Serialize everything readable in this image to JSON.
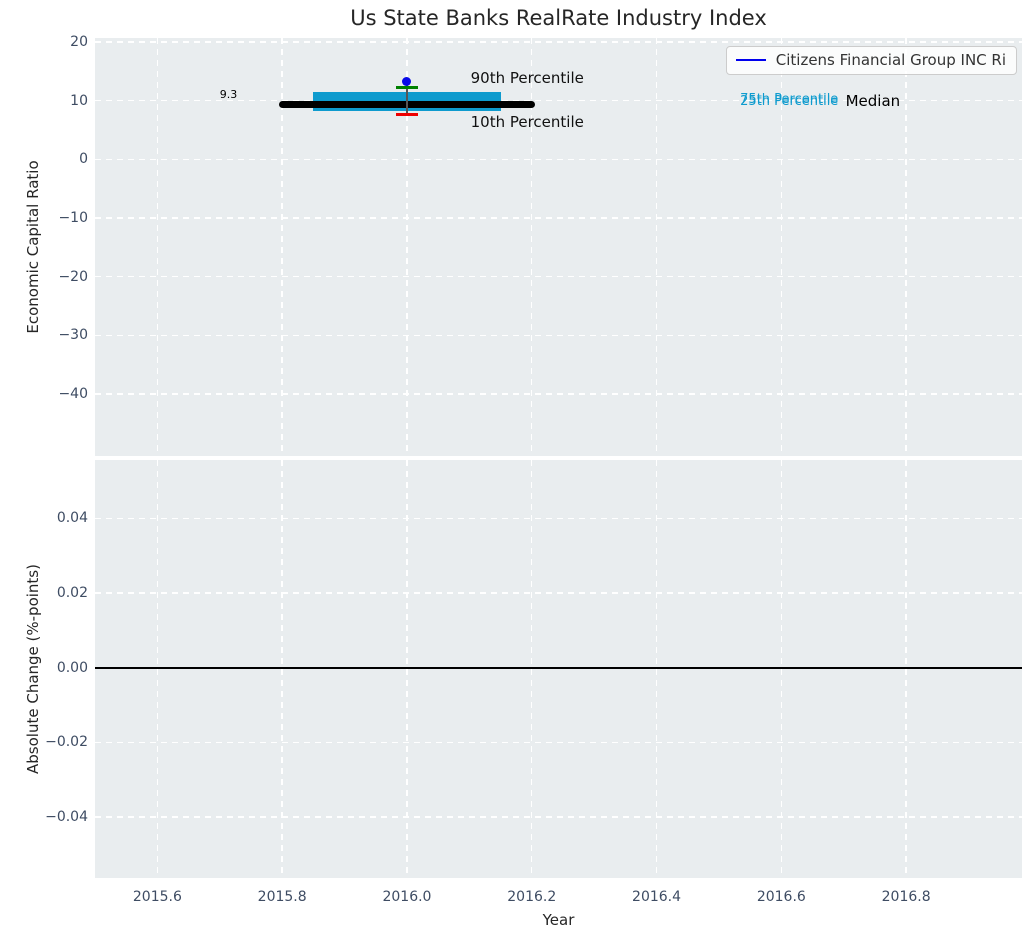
{
  "chart_data": {
    "type": "errorbar",
    "title": "Us State Banks RealRate Industry Index",
    "xlabel": "Year",
    "x_ticks": [
      2015.6,
      2015.8,
      2016.0,
      2016.2,
      2016.4,
      2016.6,
      2016.8
    ],
    "x_tick_labels": [
      "2015.6",
      "2015.8",
      "2016.0",
      "2016.2",
      "2016.4",
      "2016.6",
      "2016.8"
    ],
    "xlim": [
      2015.5,
      2016.9857
    ],
    "grid": true,
    "background_color": "#e9edef",
    "legend": {
      "position": "upper right",
      "entries": [
        {
          "label": "Citizens Financial Group INC Ri",
          "color": "#0000ee"
        }
      ]
    },
    "panels": [
      {
        "ylabel": "Economic Capital Ratio",
        "y_ticks": [
          20,
          10,
          0,
          -10,
          -20,
          -30,
          -40
        ],
        "y_tick_labels": [
          "20",
          "10",
          "0",
          "−10",
          "−20",
          "−30",
          "−40"
        ],
        "ylim": [
          -50.6,
          20.7
        ],
        "median_line": {
          "x": [
            2015.8,
            2016.2
          ],
          "value": 9.3,
          "color": "#000000",
          "label": "Median"
        },
        "iqr_band": {
          "x": [
            2015.85,
            2016.15
          ],
          "from": 8.3,
          "to": 11.5,
          "color": "#0e9bce",
          "label": "25th-75th Percentile"
        },
        "errorbar": {
          "x": 2016.0,
          "point": 13.3,
          "high": 12.3,
          "low": 7.7,
          "cap_halfwidth": 0.018,
          "point_color": "#0909e8",
          "stem_color": "#555555",
          "high_cap_color": "#008000",
          "low_cap_color": "#ee0000",
          "high_label": "90th Percentile",
          "low_label": "10th Percentile"
        },
        "annotations": [
          {
            "text": "9.3",
            "x": 2015.728,
            "y": 11.0,
            "anchor": "end",
            "color": "#000000",
            "size": 11
          },
          {
            "text": "90th Percentile",
            "x": 2016.102,
            "y": 13.9,
            "anchor": "start",
            "color": "#111111",
            "size": 15
          },
          {
            "text": "10th Percentile",
            "x": 2016.102,
            "y": 6.4,
            "anchor": "start",
            "color": "#111111",
            "size": 15
          },
          {
            "text": "75th Percentile",
            "x": 2016.534,
            "y": 10.05,
            "anchor": "start",
            "color": "#0e9bce",
            "size": 13
          },
          {
            "text": "25th Percentile",
            "x": 2016.534,
            "y": 9.8,
            "anchor": "start",
            "color": "#0e9bce",
            "size": 13
          },
          {
            "text": "Median",
            "x": 2016.703,
            "y": 9.9,
            "anchor": "start",
            "color": "#000000",
            "size": 15
          }
        ]
      },
      {
        "ylabel": "Absolute Change (%-points)",
        "y_ticks": [
          0.04,
          0.02,
          0.0,
          -0.02,
          -0.04
        ],
        "y_tick_labels": [
          "0.04",
          "0.02",
          "0.00",
          "−0.02",
          "−0.04"
        ],
        "ylim": [
          -0.0563,
          0.0556
        ],
        "zero_line": {
          "value": 0.0,
          "color": "#000000"
        },
        "annotations": []
      }
    ]
  }
}
